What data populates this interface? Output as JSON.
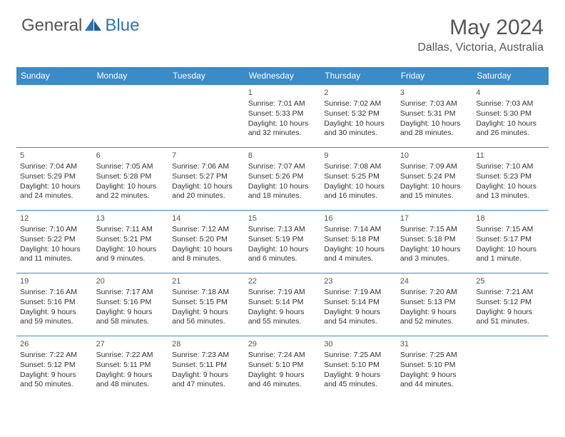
{
  "logo": {
    "part1": "General",
    "part2": "Blue",
    "color1": "#777",
    "color2": "#2d76b5"
  },
  "month_title": "May 2024",
  "location": "Dallas, Victoria, Australia",
  "header_bg": "#3b8bc9",
  "header_text": "#ffffff",
  "border_color": "#3b8bc9",
  "weekdays": [
    "Sunday",
    "Monday",
    "Tuesday",
    "Wednesday",
    "Thursday",
    "Friday",
    "Saturday"
  ],
  "weeks": [
    [
      null,
      null,
      null,
      {
        "d": "1",
        "sr": "7:01 AM",
        "ss": "5:33 PM",
        "dl": "10 hours and 32 minutes."
      },
      {
        "d": "2",
        "sr": "7:02 AM",
        "ss": "5:32 PM",
        "dl": "10 hours and 30 minutes."
      },
      {
        "d": "3",
        "sr": "7:03 AM",
        "ss": "5:31 PM",
        "dl": "10 hours and 28 minutes."
      },
      {
        "d": "4",
        "sr": "7:03 AM",
        "ss": "5:30 PM",
        "dl": "10 hours and 26 minutes."
      }
    ],
    [
      {
        "d": "5",
        "sr": "7:04 AM",
        "ss": "5:29 PM",
        "dl": "10 hours and 24 minutes."
      },
      {
        "d": "6",
        "sr": "7:05 AM",
        "ss": "5:28 PM",
        "dl": "10 hours and 22 minutes."
      },
      {
        "d": "7",
        "sr": "7:06 AM",
        "ss": "5:27 PM",
        "dl": "10 hours and 20 minutes."
      },
      {
        "d": "8",
        "sr": "7:07 AM",
        "ss": "5:26 PM",
        "dl": "10 hours and 18 minutes."
      },
      {
        "d": "9",
        "sr": "7:08 AM",
        "ss": "5:25 PM",
        "dl": "10 hours and 16 minutes."
      },
      {
        "d": "10",
        "sr": "7:09 AM",
        "ss": "5:24 PM",
        "dl": "10 hours and 15 minutes."
      },
      {
        "d": "11",
        "sr": "7:10 AM",
        "ss": "5:23 PM",
        "dl": "10 hours and 13 minutes."
      }
    ],
    [
      {
        "d": "12",
        "sr": "7:10 AM",
        "ss": "5:22 PM",
        "dl": "10 hours and 11 minutes."
      },
      {
        "d": "13",
        "sr": "7:11 AM",
        "ss": "5:21 PM",
        "dl": "10 hours and 9 minutes."
      },
      {
        "d": "14",
        "sr": "7:12 AM",
        "ss": "5:20 PM",
        "dl": "10 hours and 8 minutes."
      },
      {
        "d": "15",
        "sr": "7:13 AM",
        "ss": "5:19 PM",
        "dl": "10 hours and 6 minutes."
      },
      {
        "d": "16",
        "sr": "7:14 AM",
        "ss": "5:18 PM",
        "dl": "10 hours and 4 minutes."
      },
      {
        "d": "17",
        "sr": "7:15 AM",
        "ss": "5:18 PM",
        "dl": "10 hours and 3 minutes."
      },
      {
        "d": "18",
        "sr": "7:15 AM",
        "ss": "5:17 PM",
        "dl": "10 hours and 1 minute."
      }
    ],
    [
      {
        "d": "19",
        "sr": "7:16 AM",
        "ss": "5:16 PM",
        "dl": "9 hours and 59 minutes."
      },
      {
        "d": "20",
        "sr": "7:17 AM",
        "ss": "5:16 PM",
        "dl": "9 hours and 58 minutes."
      },
      {
        "d": "21",
        "sr": "7:18 AM",
        "ss": "5:15 PM",
        "dl": "9 hours and 56 minutes."
      },
      {
        "d": "22",
        "sr": "7:19 AM",
        "ss": "5:14 PM",
        "dl": "9 hours and 55 minutes."
      },
      {
        "d": "23",
        "sr": "7:19 AM",
        "ss": "5:14 PM",
        "dl": "9 hours and 54 minutes."
      },
      {
        "d": "24",
        "sr": "7:20 AM",
        "ss": "5:13 PM",
        "dl": "9 hours and 52 minutes."
      },
      {
        "d": "25",
        "sr": "7:21 AM",
        "ss": "5:12 PM",
        "dl": "9 hours and 51 minutes."
      }
    ],
    [
      {
        "d": "26",
        "sr": "7:22 AM",
        "ss": "5:12 PM",
        "dl": "9 hours and 50 minutes."
      },
      {
        "d": "27",
        "sr": "7:22 AM",
        "ss": "5:11 PM",
        "dl": "9 hours and 48 minutes."
      },
      {
        "d": "28",
        "sr": "7:23 AM",
        "ss": "5:11 PM",
        "dl": "9 hours and 47 minutes."
      },
      {
        "d": "29",
        "sr": "7:24 AM",
        "ss": "5:10 PM",
        "dl": "9 hours and 46 minutes."
      },
      {
        "d": "30",
        "sr": "7:25 AM",
        "ss": "5:10 PM",
        "dl": "9 hours and 45 minutes."
      },
      {
        "d": "31",
        "sr": "7:25 AM",
        "ss": "5:10 PM",
        "dl": "9 hours and 44 minutes."
      },
      null
    ]
  ],
  "labels": {
    "sunrise": "Sunrise:",
    "sunset": "Sunset:",
    "daylight": "Daylight:"
  }
}
